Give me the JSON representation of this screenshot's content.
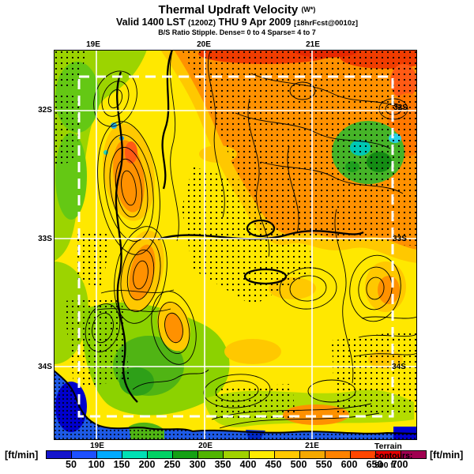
{
  "header": {
    "title": "Thermal Updraft Velocity",
    "title_unit": "(W*)",
    "valid_prefix": "Valid 1400 LST",
    "valid_zulu": "(1200Z)",
    "valid_date": "THU 9 Apr 2009",
    "valid_forecast": "[18hrFcst@0010z]",
    "stipple_note": "B/S Ratio Stipple.  Dense= 0 to 4  Sparse= 4 to 7"
  },
  "map": {
    "lon_labels_top": [
      "19E",
      "20E",
      "21E"
    ],
    "lon_labels_bottom": [
      "19E",
      "20E",
      "21E"
    ],
    "lat_labels_left": [
      "32S",
      "33S",
      "34S"
    ],
    "lat_labels_right": [
      "32S",
      "33S",
      "34S"
    ],
    "terrain_note": "Terrain contours: 500 ft"
  },
  "colorbar": {
    "unit_left": "[ft/min]",
    "unit_right": "[ft/min]",
    "ticks": [
      "50",
      "100",
      "150",
      "200",
      "250",
      "300",
      "350",
      "400",
      "450",
      "500",
      "550",
      "600",
      "650",
      "700"
    ],
    "colors": [
      "#1414cc",
      "#1e50ff",
      "#00aaff",
      "#00e0b4",
      "#00d264",
      "#14a014",
      "#50b400",
      "#a0d200",
      "#ffeb00",
      "#ffc800",
      "#f5a800",
      "#ff8200",
      "#ff4600",
      "#e60000",
      "#a00050"
    ]
  },
  "map_colors": {
    "land_yellow": "#ffe800",
    "amber": "#ffc800",
    "orange": "#ff9100",
    "red": "#f03c00",
    "green_light": "#9cd400",
    "green": "#64c814",
    "green_dark": "#2ea018",
    "teal": "#00c8b4",
    "ocean": "#1e5ae6",
    "ocean_dark": "#0000cd",
    "grid": "#ffffff"
  }
}
